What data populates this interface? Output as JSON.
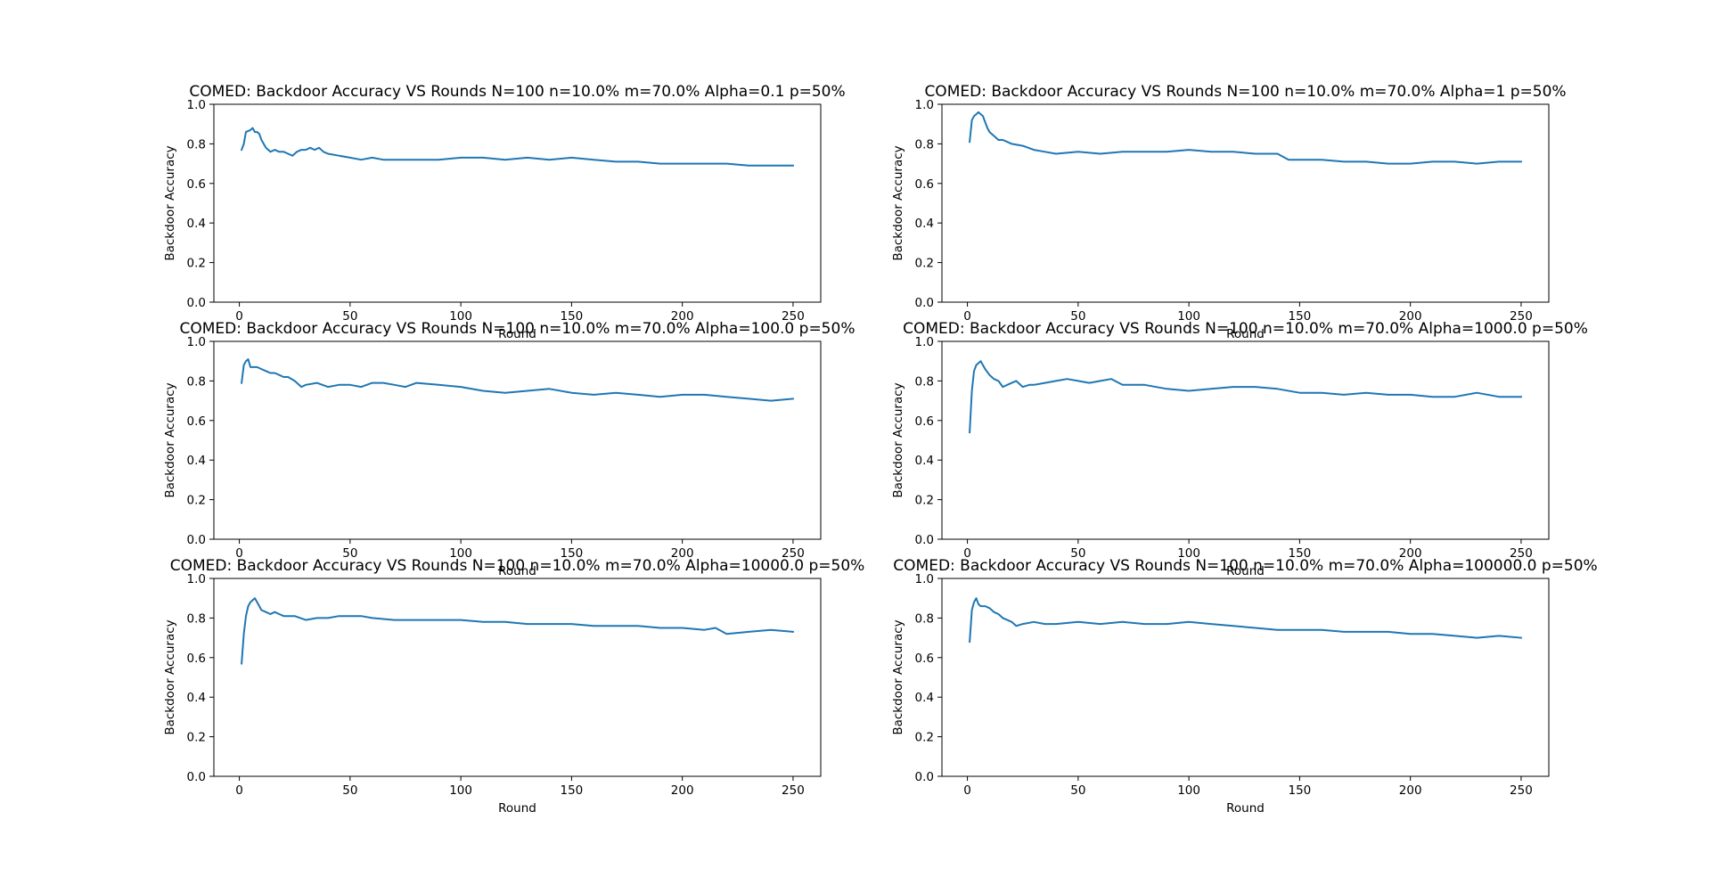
{
  "figure": {
    "line_color": "#1f77b4",
    "background": "#ffffff"
  },
  "chart_data": [
    {
      "type": "line",
      "title": "COMED: Backdoor Accuracy VS Rounds N=100 n=10.0% m=70.0% Alpha=0.1 p=50%",
      "xlabel": "Round",
      "ylabel": "Backdoor Accuracy",
      "xlim": [
        -11.5,
        262.5
      ],
      "ylim": [
        0.0,
        1.0
      ],
      "xticks": [
        0,
        50,
        100,
        150,
        200,
        250
      ],
      "yticks": [
        0.0,
        0.2,
        0.4,
        0.6,
        0.8,
        1.0
      ],
      "xtick_labels": [
        "0",
        "50",
        "100",
        "150",
        "200",
        "250"
      ],
      "ytick_labels": [
        "0.0",
        "0.2",
        "0.4",
        "0.6",
        "0.8",
        "1.0"
      ],
      "grid": false,
      "series": [
        {
          "x": [
            1,
            2,
            3,
            5,
            6,
            7,
            8,
            9,
            10,
            12,
            14,
            16,
            18,
            20,
            22,
            24,
            26,
            28,
            30,
            32,
            34,
            36,
            38,
            40,
            45,
            50,
            55,
            60,
            65,
            70,
            80,
            90,
            100,
            110,
            120,
            130,
            140,
            150,
            160,
            170,
            180,
            190,
            200,
            210,
            220,
            230,
            240,
            250
          ],
          "y": [
            0.77,
            0.8,
            0.86,
            0.87,
            0.88,
            0.86,
            0.86,
            0.85,
            0.82,
            0.78,
            0.76,
            0.77,
            0.76,
            0.76,
            0.75,
            0.74,
            0.76,
            0.77,
            0.77,
            0.78,
            0.77,
            0.78,
            0.76,
            0.75,
            0.74,
            0.73,
            0.72,
            0.73,
            0.72,
            0.72,
            0.72,
            0.72,
            0.73,
            0.73,
            0.72,
            0.73,
            0.72,
            0.73,
            0.72,
            0.71,
            0.71,
            0.7,
            0.7,
            0.7,
            0.7,
            0.69,
            0.69,
            0.69
          ]
        }
      ]
    },
    {
      "type": "line",
      "title": "COMED: Backdoor Accuracy VS Rounds N=100 n=10.0% m=70.0% Alpha=1 p=50%",
      "xlabel": "Round",
      "ylabel": "Backdoor Accuracy",
      "xlim": [
        -11.5,
        262.5
      ],
      "ylim": [
        0.0,
        1.0
      ],
      "xticks": [
        0,
        50,
        100,
        150,
        200,
        250
      ],
      "yticks": [
        0.0,
        0.2,
        0.4,
        0.6,
        0.8,
        1.0
      ],
      "xtick_labels": [
        "0",
        "50",
        "100",
        "150",
        "200",
        "250"
      ],
      "ytick_labels": [
        "0.0",
        "0.2",
        "0.4",
        "0.6",
        "0.8",
        "1.0"
      ],
      "grid": false,
      "series": [
        {
          "x": [
            1,
            2,
            3,
            4,
            5,
            6,
            7,
            8,
            9,
            10,
            12,
            14,
            16,
            18,
            20,
            25,
            30,
            35,
            40,
            50,
            60,
            70,
            80,
            90,
            100,
            110,
            120,
            130,
            140,
            145,
            150,
            160,
            170,
            180,
            190,
            200,
            210,
            220,
            230,
            240,
            250
          ],
          "y": [
            0.81,
            0.92,
            0.94,
            0.95,
            0.96,
            0.95,
            0.94,
            0.91,
            0.88,
            0.86,
            0.84,
            0.82,
            0.82,
            0.81,
            0.8,
            0.79,
            0.77,
            0.76,
            0.75,
            0.76,
            0.75,
            0.76,
            0.76,
            0.76,
            0.77,
            0.76,
            0.76,
            0.75,
            0.75,
            0.72,
            0.72,
            0.72,
            0.71,
            0.71,
            0.7,
            0.7,
            0.71,
            0.71,
            0.7,
            0.71,
            0.71
          ]
        }
      ]
    },
    {
      "type": "line",
      "title": "COMED: Backdoor Accuracy VS Rounds N=100 n=10.0% m=70.0% Alpha=100.0 p=50%",
      "xlabel": "Round",
      "ylabel": "Backdoor Accuracy",
      "xlim": [
        -11.5,
        262.5
      ],
      "ylim": [
        0.0,
        1.0
      ],
      "xticks": [
        0,
        50,
        100,
        150,
        200,
        250
      ],
      "yticks": [
        0.0,
        0.2,
        0.4,
        0.6,
        0.8,
        1.0
      ],
      "xtick_labels": [
        "0",
        "50",
        "100",
        "150",
        "200",
        "250"
      ],
      "ytick_labels": [
        "0.0",
        "0.2",
        "0.4",
        "0.6",
        "0.8",
        "1.0"
      ],
      "grid": false,
      "series": [
        {
          "x": [
            1,
            2,
            3,
            4,
            5,
            6,
            8,
            10,
            12,
            14,
            16,
            18,
            20,
            22,
            25,
            28,
            30,
            35,
            40,
            45,
            50,
            55,
            60,
            65,
            70,
            75,
            80,
            90,
            100,
            110,
            120,
            130,
            140,
            150,
            160,
            170,
            180,
            190,
            200,
            210,
            220,
            230,
            240,
            250
          ],
          "y": [
            0.79,
            0.88,
            0.9,
            0.91,
            0.87,
            0.87,
            0.87,
            0.86,
            0.85,
            0.84,
            0.84,
            0.83,
            0.82,
            0.82,
            0.8,
            0.77,
            0.78,
            0.79,
            0.77,
            0.78,
            0.78,
            0.77,
            0.79,
            0.79,
            0.78,
            0.77,
            0.79,
            0.78,
            0.77,
            0.75,
            0.74,
            0.75,
            0.76,
            0.74,
            0.73,
            0.74,
            0.73,
            0.72,
            0.73,
            0.73,
            0.72,
            0.71,
            0.7,
            0.71
          ]
        }
      ]
    },
    {
      "type": "line",
      "title": "COMED: Backdoor Accuracy VS Rounds N=100 n=10.0% m=70.0% Alpha=1000.0 p=50%",
      "xlabel": "Round",
      "ylabel": "Backdoor Accuracy",
      "xlim": [
        -11.5,
        262.5
      ],
      "ylim": [
        0.0,
        1.0
      ],
      "xticks": [
        0,
        50,
        100,
        150,
        200,
        250
      ],
      "yticks": [
        0.0,
        0.2,
        0.4,
        0.6,
        0.8,
        1.0
      ],
      "xtick_labels": [
        "0",
        "50",
        "100",
        "150",
        "200",
        "250"
      ],
      "ytick_labels": [
        "0.0",
        "0.2",
        "0.4",
        "0.6",
        "0.8",
        "1.0"
      ],
      "grid": false,
      "series": [
        {
          "x": [
            1,
            2,
            3,
            4,
            5,
            6,
            7,
            8,
            10,
            12,
            14,
            16,
            18,
            20,
            22,
            25,
            28,
            30,
            35,
            40,
            45,
            50,
            55,
            60,
            65,
            70,
            80,
            90,
            100,
            110,
            120,
            130,
            140,
            150,
            160,
            170,
            180,
            190,
            200,
            210,
            220,
            230,
            240,
            250
          ],
          "y": [
            0.54,
            0.75,
            0.85,
            0.88,
            0.89,
            0.9,
            0.88,
            0.86,
            0.83,
            0.81,
            0.8,
            0.77,
            0.78,
            0.79,
            0.8,
            0.77,
            0.78,
            0.78,
            0.79,
            0.8,
            0.81,
            0.8,
            0.79,
            0.8,
            0.81,
            0.78,
            0.78,
            0.76,
            0.75,
            0.76,
            0.77,
            0.77,
            0.76,
            0.74,
            0.74,
            0.73,
            0.74,
            0.73,
            0.73,
            0.72,
            0.72,
            0.74,
            0.72,
            0.72
          ]
        }
      ]
    },
    {
      "type": "line",
      "title": "COMED: Backdoor Accuracy VS Rounds N=100 n=10.0% m=70.0% Alpha=10000.0 p=50%",
      "xlabel": "Round",
      "ylabel": "Backdoor Accuracy",
      "xlim": [
        -11.5,
        262.5
      ],
      "ylim": [
        0.0,
        1.0
      ],
      "xticks": [
        0,
        50,
        100,
        150,
        200,
        250
      ],
      "yticks": [
        0.0,
        0.2,
        0.4,
        0.6,
        0.8,
        1.0
      ],
      "xtick_labels": [
        "0",
        "50",
        "100",
        "150",
        "200",
        "250"
      ],
      "ytick_labels": [
        "0.0",
        "0.2",
        "0.4",
        "0.6",
        "0.8",
        "1.0"
      ],
      "grid": false,
      "series": [
        {
          "x": [
            1,
            2,
            3,
            4,
            5,
            6,
            7,
            8,
            10,
            12,
            14,
            16,
            18,
            20,
            25,
            30,
            35,
            40,
            45,
            50,
            55,
            60,
            70,
            80,
            90,
            100,
            110,
            120,
            130,
            140,
            150,
            160,
            170,
            180,
            190,
            200,
            210,
            215,
            220,
            230,
            240,
            250
          ],
          "y": [
            0.57,
            0.72,
            0.81,
            0.86,
            0.88,
            0.89,
            0.9,
            0.88,
            0.84,
            0.83,
            0.82,
            0.83,
            0.82,
            0.81,
            0.81,
            0.79,
            0.8,
            0.8,
            0.81,
            0.81,
            0.81,
            0.8,
            0.79,
            0.79,
            0.79,
            0.79,
            0.78,
            0.78,
            0.77,
            0.77,
            0.77,
            0.76,
            0.76,
            0.76,
            0.75,
            0.75,
            0.74,
            0.75,
            0.72,
            0.73,
            0.74,
            0.73
          ]
        }
      ]
    },
    {
      "type": "line",
      "title": "COMED: Backdoor Accuracy VS Rounds N=100 n=10.0% m=70.0% Alpha=100000.0 p=50%",
      "xlabel": "Round",
      "ylabel": "Backdoor Accuracy",
      "xlim": [
        -11.5,
        262.5
      ],
      "ylim": [
        0.0,
        1.0
      ],
      "xticks": [
        0,
        50,
        100,
        150,
        200,
        250
      ],
      "yticks": [
        0.0,
        0.2,
        0.4,
        0.6,
        0.8,
        1.0
      ],
      "xtick_labels": [
        "0",
        "50",
        "100",
        "150",
        "200",
        "250"
      ],
      "ytick_labels": [
        "0.0",
        "0.2",
        "0.4",
        "0.6",
        "0.8",
        "1.0"
      ],
      "grid": false,
      "series": [
        {
          "x": [
            1,
            2,
            3,
            4,
            5,
            6,
            8,
            10,
            12,
            14,
            16,
            18,
            20,
            22,
            25,
            30,
            35,
            40,
            50,
            60,
            70,
            80,
            90,
            100,
            110,
            120,
            130,
            140,
            150,
            160,
            170,
            180,
            190,
            200,
            210,
            220,
            230,
            240,
            250
          ],
          "y": [
            0.68,
            0.84,
            0.88,
            0.9,
            0.87,
            0.86,
            0.86,
            0.85,
            0.83,
            0.82,
            0.8,
            0.79,
            0.78,
            0.76,
            0.77,
            0.78,
            0.77,
            0.77,
            0.78,
            0.77,
            0.78,
            0.77,
            0.77,
            0.78,
            0.77,
            0.76,
            0.75,
            0.74,
            0.74,
            0.74,
            0.73,
            0.73,
            0.73,
            0.72,
            0.72,
            0.71,
            0.7,
            0.71,
            0.7
          ]
        }
      ]
    }
  ]
}
